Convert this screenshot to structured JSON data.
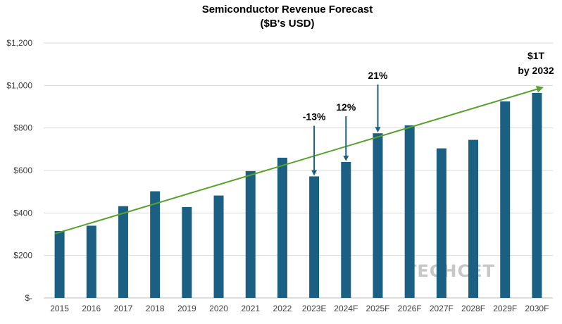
{
  "chart_data": {
    "type": "bar",
    "title": "Semiconductor Revenue Forecast",
    "subtitle": "($B's USD)",
    "xlabel": "",
    "ylabel": "",
    "categories": [
      "2015",
      "2016",
      "2017",
      "2018",
      "2019",
      "2020",
      "2021",
      "2022",
      "2023E",
      "2024F",
      "2025F",
      "2026F",
      "2027F",
      "2028F",
      "2029F",
      "2030F"
    ],
    "values": [
      315,
      340,
      432,
      502,
      428,
      482,
      597,
      660,
      572,
      640,
      775,
      812,
      704,
      744,
      925,
      965
    ],
    "ylim": [
      0,
      1200
    ],
    "yticks": [
      0,
      200,
      400,
      600,
      800,
      1000,
      1200
    ],
    "ytick_labels": [
      "$-",
      "$200",
      "$400",
      "$600",
      "$800",
      "$1,000",
      "$1,200"
    ],
    "grid": true,
    "bar_color": "#1b6082",
    "trendline": {
      "start_category": "2015",
      "start_value": 315,
      "end_value": 990,
      "color": "#5aa02c"
    },
    "annotations": [
      {
        "text": "-13%",
        "category": "2023E",
        "arrow_from": 810,
        "arrow_to": 572
      },
      {
        "text": "12%",
        "category": "2024F",
        "arrow_from": 855,
        "arrow_to": 640
      },
      {
        "text": "21%",
        "category": "2025F",
        "arrow_from": 1005,
        "arrow_to": 775
      }
    ],
    "trend_label_line1": "$1T",
    "trend_label_line2": "by 2032",
    "watermark": "TECHCET"
  }
}
